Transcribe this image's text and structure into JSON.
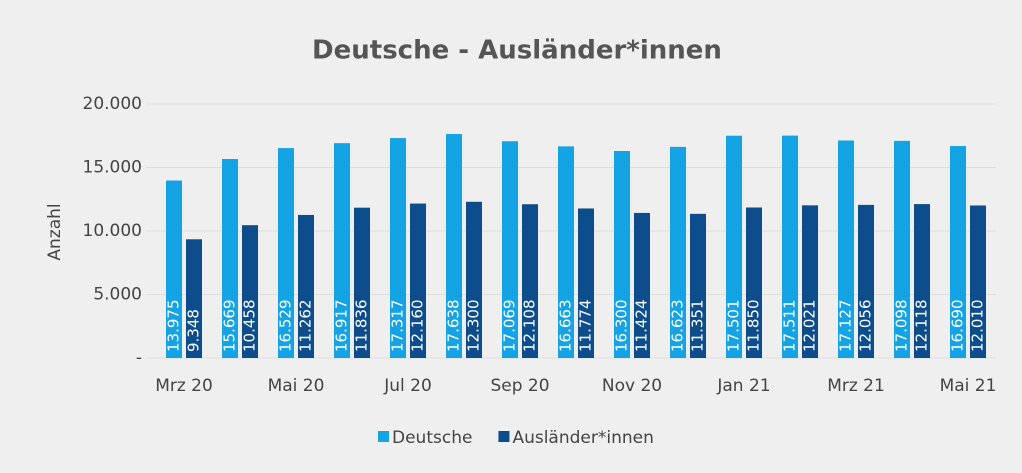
{
  "chart_data": {
    "type": "bar",
    "title": "Deutsche - Ausländer*innen",
    "y_label": "Anzahl",
    "categories": [
      "Mrz 20",
      null,
      "Mai 20",
      null,
      "Jul 20",
      null,
      "Sep 20",
      null,
      "Nov 20",
      null,
      "Jan 21",
      null,
      "Mrz 21",
      null,
      "Mai 21"
    ],
    "series": [
      {
        "name": "Deutsche",
        "color": "#14a3e4",
        "values": [
          13975,
          15669,
          16529,
          16917,
          17317,
          17638,
          17069,
          16663,
          16300,
          16623,
          17501,
          17511,
          17127,
          17098,
          16690
        ],
        "value_labels": [
          "13.975",
          "15.669",
          "16.529",
          "16.917",
          "17.317",
          "17.638",
          "17.069",
          "16.663",
          "16.300",
          "16.623",
          "17.501",
          "17.511",
          "17.127",
          "17.098",
          "16.690"
        ]
      },
      {
        "name": "Ausländer*innen",
        "color": "#0d4d8c",
        "values": [
          9348,
          10458,
          11262,
          11836,
          12160,
          12300,
          12108,
          11774,
          11424,
          11351,
          11850,
          12021,
          12056,
          12118,
          12010
        ],
        "value_labels": [
          "9.348",
          "10.458",
          "11.262",
          "11.836",
          "12.160",
          "12.300",
          "12.108",
          "11.774",
          "11.424",
          "11.351",
          "11.850",
          "12.021",
          "12.056",
          "12.118",
          "12.010"
        ]
      }
    ],
    "ylim": [
      0,
      20000
    ],
    "yticks": [
      {
        "value": 0,
        "label": "-"
      },
      {
        "value": 5000,
        "label": "5.000"
      },
      {
        "value": 10000,
        "label": "10.000"
      },
      {
        "value": 15000,
        "label": "15.000"
      },
      {
        "value": 20000,
        "label": "20.000"
      }
    ],
    "grid": true,
    "legend": "bottom"
  }
}
